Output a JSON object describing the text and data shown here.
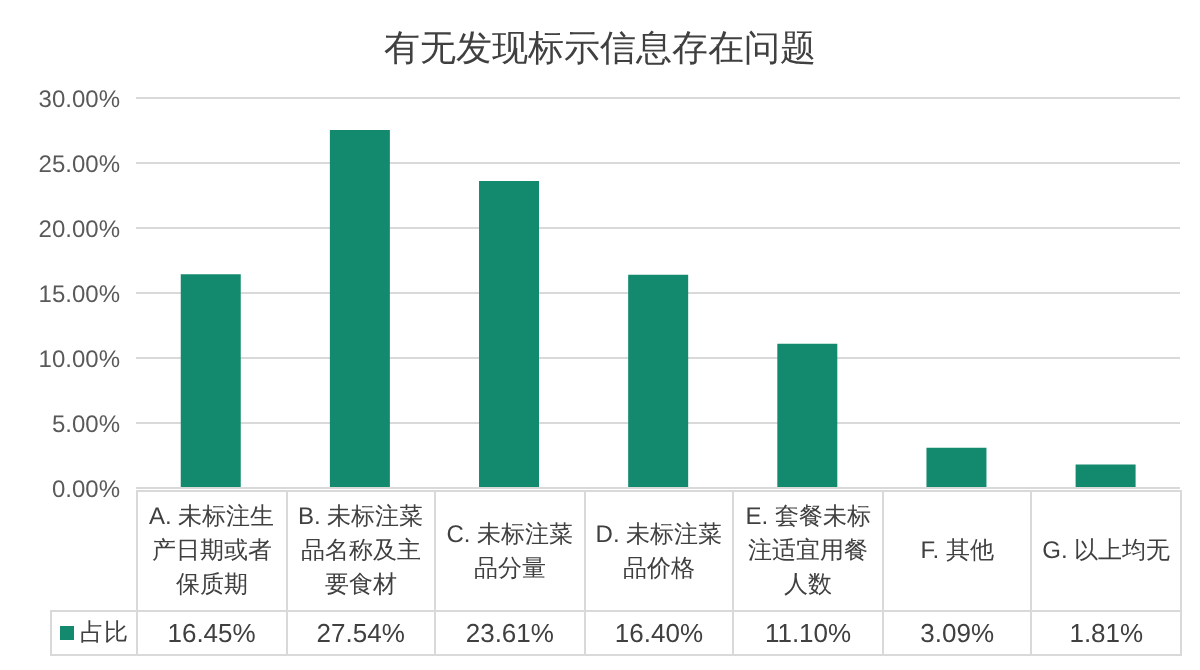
{
  "chart_data": {
    "type": "bar",
    "title": "有无发现标示信息存在问题",
    "categories": [
      "A. 未标注生产日期或者保质期",
      "B. 未标注菜品名称及主要食材",
      "C. 未标注菜品分量",
      "D. 未标注菜品价格",
      "E. 套餐未标注适宜用餐人数",
      "F. 其他",
      "G. 以上均无"
    ],
    "series": [
      {
        "name": "占比",
        "color": "#138a6e",
        "values": [
          16.45,
          27.54,
          23.61,
          16.4,
          11.1,
          3.09,
          1.81
        ],
        "value_labels": [
          "16.45%",
          "27.54%",
          "23.61%",
          "16.40%",
          "11.10%",
          "3.09%",
          "1.81%"
        ]
      }
    ],
    "ylim": [
      0,
      30
    ],
    "yticks": [
      {
        "value": 0,
        "label": "0.00%"
      },
      {
        "value": 5,
        "label": "5.00%"
      },
      {
        "value": 10,
        "label": "10.00%"
      },
      {
        "value": 15,
        "label": "15.00%"
      },
      {
        "value": 20,
        "label": "20.00%"
      },
      {
        "value": 25,
        "label": "25.00%"
      },
      {
        "value": 30,
        "label": "30.00%"
      }
    ],
    "grid": "y",
    "legend": "bottom"
  }
}
